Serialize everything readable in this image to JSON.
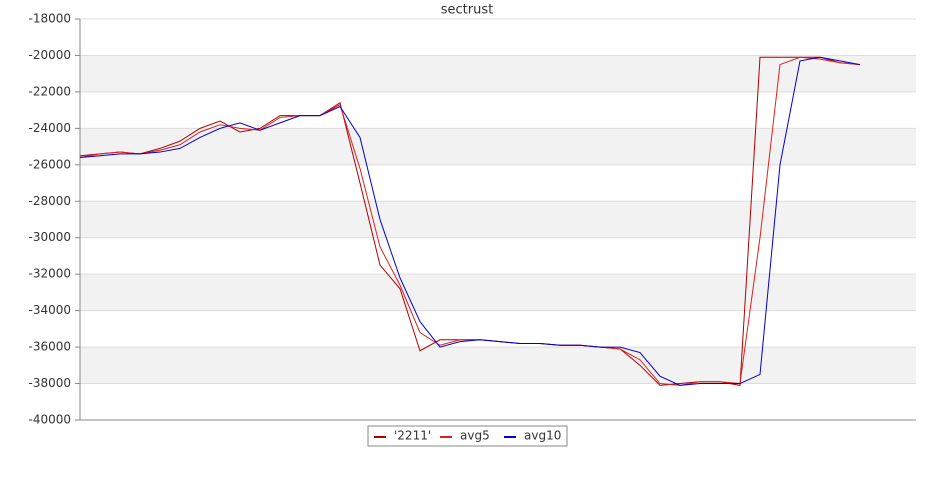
{
  "chart_data": {
    "type": "line",
    "title": "sectrust",
    "categories": [
      null,
      null,
      null,
      null,
      null,
      null,
      null,
      null,
      null,
      null,
      null,
      null,
      null,
      null,
      null,
      null,
      null,
      null,
      null,
      null,
      null,
      null,
      null,
      null,
      null,
      null,
      null,
      null,
      null,
      null,
      null,
      null,
      null,
      null,
      null,
      null,
      null,
      null,
      null,
      null
    ],
    "series": [
      {
        "name": "'2211'",
        "color": "#b00000",
        "values": [
          -25500,
          -25400,
          -25300,
          -25400,
          -25100,
          -24700,
          -24000,
          -23600,
          -24200,
          -24000,
          -23300,
          -23300,
          -23300,
          -22600,
          -27000,
          -31500,
          -32800,
          -36200,
          -35600,
          -35600,
          -35600,
          -35700,
          -35800,
          -35800,
          -35900,
          -35900,
          -36000,
          -36100,
          -37000,
          -38100,
          -38000,
          -37900,
          -37900,
          -38100,
          -20100,
          -20100,
          -20100,
          -20100,
          -20400,
          -20500
        ]
      },
      {
        "name": "avg5",
        "color": "#e02020",
        "values": [
          -25600,
          -25400,
          -25300,
          -25400,
          -25200,
          -24900,
          -24200,
          -23800,
          -24000,
          -24100,
          -23400,
          -23300,
          -23300,
          -22700,
          -26200,
          -30500,
          -32600,
          -35200,
          -35900,
          -35600,
          -35600,
          -35700,
          -35800,
          -35800,
          -35900,
          -35900,
          -36000,
          -36100,
          -36700,
          -38000,
          -38100,
          -37900,
          -37900,
          -38000,
          -30000,
          -20500,
          -20100,
          -20200,
          -20400,
          -20500
        ]
      },
      {
        "name": "avg10",
        "color": "#0000cc",
        "values": [
          -25600,
          -25500,
          -25400,
          -25400,
          -25300,
          -25100,
          -24500,
          -24000,
          -23700,
          -24100,
          -23700,
          -23300,
          -23300,
          -22800,
          -24500,
          -29000,
          -32200,
          -34600,
          -36000,
          -35700,
          -35600,
          -35700,
          -35800,
          -35800,
          -35900,
          -35900,
          -36000,
          -36000,
          -36300,
          -37600,
          -38100,
          -38000,
          -38000,
          -38000,
          -37500,
          -26000,
          -20300,
          -20100,
          -20300,
          -20500
        ]
      }
    ],
    "ylim": [
      -40000,
      -18000
    ],
    "yticks": [
      -40000,
      -38000,
      -36000,
      -34000,
      -32000,
      -30000,
      -28000,
      -26000,
      -24000,
      -22000,
      -20000,
      -18000
    ],
    "grid": true
  }
}
